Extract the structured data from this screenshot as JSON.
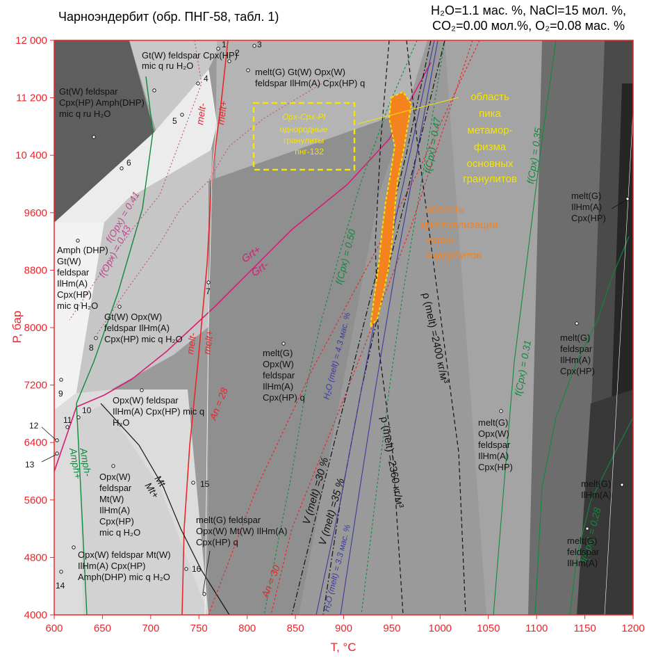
{
  "header": {
    "title": "Чарноэндербит (обр. ПНГ-58, табл. 1)",
    "conditions_line1": "H₂O=1.1 мас. %, NaCl=15 мол. %,",
    "conditions_line2": "CO₂=0.00 мол.%, O₂=0.08 мас. %"
  },
  "axes": {
    "x_label": "T, °C",
    "y_label": "P, бар",
    "x_ticks": [
      "600",
      "650",
      "700",
      "750",
      "800",
      "850",
      "900",
      "950",
      "1000",
      "1050",
      "1100",
      "1150",
      "1200"
    ],
    "y_ticks": [
      "12 000",
      "11 200",
      "10 400",
      "9600",
      "8800",
      "8000",
      "7200",
      "6400",
      "5600",
      "4800",
      "4000"
    ],
    "x_range": [
      600,
      1200
    ],
    "y_range": [
      4000,
      12000
    ],
    "axis_color": "#e8262b"
  },
  "fields": {
    "f1": "Gt(W) feldspar Cpx(HP) Amph(DHP) mic q ru H₂O",
    "f2": "Gt(W) feldspar Cpx(HP) mic q ru H₂O",
    "f3": "melt(G) Gt(W) Opx(W) feldspar IlHm(A) Cpx(HP) q",
    "f4": "Amph (DHP) Gt(W) feldspar IlHm(A) Cpx(HP) mic q H₂O",
    "f5": "Gt(W) Opx(W) feldspar IlHm(A) Cpx(HP) mic q H₂O",
    "f6": "melt(G) Opx(W) feldspar IlHm(A) Cpx(HP) q",
    "f7": "Opx(W) feldspar IlHm(A) Cpx(HP) mic q H₂O",
    "f8": "Opx(W) feldspar Mt(W) IlHm(A) Cpx(HP) mic q H₂O",
    "f9": "melt(G) feldspar Opx(W) Mt(W) IlHm(A) Cpx(HP) q",
    "f10": "Opx(W) feldspar Mt(W) IlHm(A) Cpx(HP) Amph(DHP) mic q H₂O",
    "f11": "melt(G) IlHm(A) Cpx(HP)",
    "f12": "melt(G) feldspar IlHm(A) Cpx(HP)",
    "f13": "melt(G) Opx(W) feldspar IlHm(A) Cpx(HP)",
    "f14": "melt(G) IlHm(A)",
    "f15": "melt(G) feldspar IlHm(A)"
  },
  "curve_labels": {
    "melt_minus": "melt-",
    "melt_plus": "melt+",
    "grt_plus": "Grt+",
    "grt_minus": "Grt-",
    "amph_minus": "Amph-",
    "amph_plus": "Amph+",
    "mt_minus": "Mt-",
    "mt_plus": "Mt+",
    "an28": "An = 28",
    "an30": "An = 30",
    "fopx041": "f(Opx) = 0.41",
    "fopx043": "f(Opx) = 0.43",
    "fcpx047": "f(Cpx) = 0.47",
    "fcpx050": "f(Cpx) = 0.50",
    "fcpx035": "f(Cpx) = 0.35",
    "fcpx031": "f(Cpx) = 0.31",
    "fcpx028": "f(Cpx) = 0.28",
    "vmelt30": "V (melt) =30 %",
    "vmelt35": "V (melt) =35 %",
    "h2o43": "H₂O (melt) = 4.3 мас. %",
    "h2o33": "H₂O (melt) = 3.3 мас. %",
    "rho2400": "ρ (melt) =2400 кг/м³",
    "rho2360": "ρ (melt) =2360 кг/м³"
  },
  "annotations": {
    "box_title": "Opx-Cpx-Pl",
    "box_line1": "однородные",
    "box_line2": "гранулиты",
    "box_line3": "пнг-132",
    "peak_l1": "область",
    "peak_l2": "пика",
    "peak_l3": "метамор-",
    "peak_l4": "физма",
    "peak_l5": "основных",
    "peak_l6": "гранулитов",
    "cryst_l1": "область",
    "cryst_l2": "кристаллизации",
    "cryst_l3": "чарно-",
    "cryst_l4": "эндербитов"
  },
  "point_numbers": [
    "1",
    "2",
    "3",
    "4",
    "5",
    "6",
    "7",
    "8",
    "9",
    "10",
    "11",
    "12",
    "13",
    "14",
    "15",
    "16"
  ],
  "colors": {
    "axis_red": "#e8262b",
    "melt_curve": "#e8262b",
    "grt_curve": "#d81b78",
    "green_iso": "#0f8a3c",
    "blue_iso": "#3b3b9e",
    "yellow_box": "#f5e500",
    "orange_region": "#f4821f"
  }
}
